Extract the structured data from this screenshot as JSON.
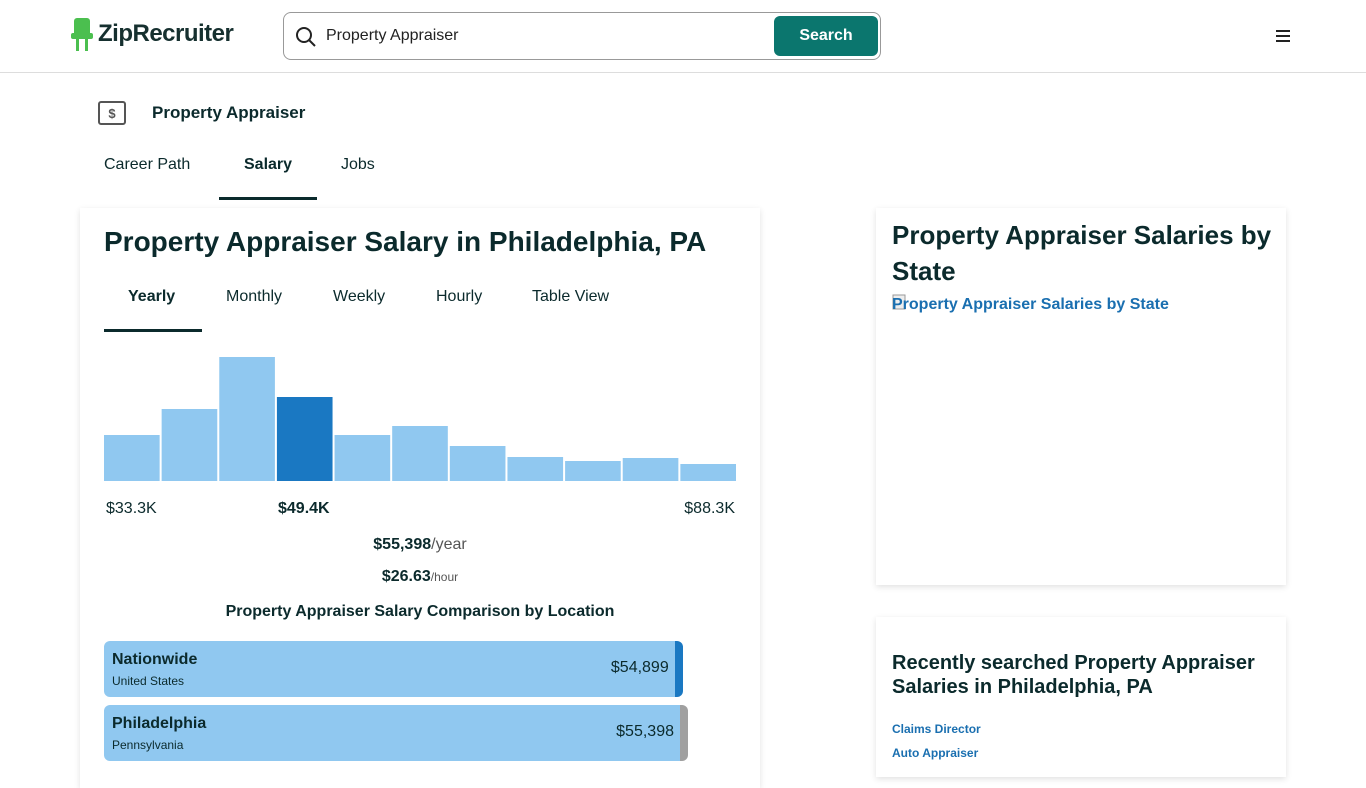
{
  "header": {
    "logo": "ZipRecruiter",
    "search_query": "Property Appraiser",
    "search_button": "Search"
  },
  "page": {
    "title": "Property Appraiser",
    "tabs": [
      "Career Path",
      "Salary",
      "Jobs"
    ],
    "active_tab": 1
  },
  "salary_card": {
    "title": "Property Appraiser Salary in Philadelphia, PA",
    "period_tabs": [
      "Yearly",
      "Monthly",
      "Weekly",
      "Hourly",
      "Table View"
    ],
    "active_period": 0,
    "histogram": {
      "values": [
        46,
        72,
        124,
        84,
        46,
        55,
        35,
        24,
        20,
        23,
        17
      ],
      "highlight_index": 3,
      "color": "#90c8f0",
      "highlight_color": "#1a78c2"
    },
    "range_labels": {
      "low": "$33.3K",
      "mid": "$49.4K",
      "high": "$88.3K"
    },
    "yearly": {
      "amount": "$55,398",
      "unit": "/year"
    },
    "hourly": {
      "amount": "$26.63",
      "unit": "/hour"
    },
    "comparison_title": "Property Appraiser Salary Comparison by Location",
    "comparison": [
      {
        "name": "Nationwide",
        "sub": "United States",
        "value": 54899,
        "value_label": "$54,899",
        "edge_color": "#1a78c2"
      },
      {
        "name": "Philadelphia",
        "sub": "Pennsylvania",
        "value": 55398,
        "value_label": "$55,398",
        "edge_color": "#a0a0a0"
      }
    ]
  },
  "state_card": {
    "title": "Property Appraiser Salaries by State",
    "image_alt": "Property Appraiser Salaries by State"
  },
  "recent_card": {
    "title": "Recently searched Property Appraiser Salaries in Philadelphia, PA",
    "links": [
      "Claims Director",
      "Auto Appraiser"
    ]
  }
}
